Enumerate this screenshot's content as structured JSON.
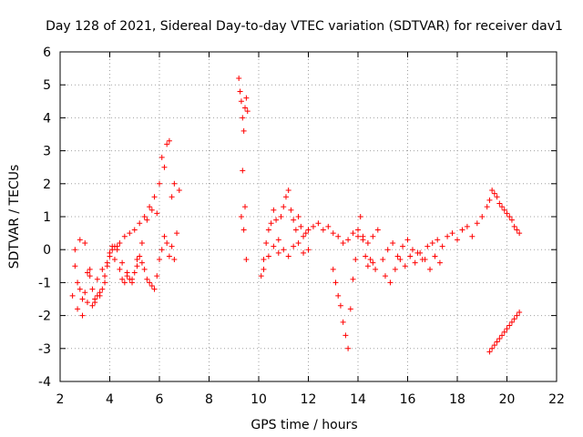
{
  "chart_data": {
    "type": "scatter",
    "title": "Day 128 of 2021, Sidereal Day-to-day VTEC variation (SDTVAR) for receiver dav1",
    "xlabel": "GPS time / hours",
    "ylabel": "SDTVAR / TECUs",
    "xlim": [
      2,
      22
    ],
    "ylim": [
      -4,
      6
    ],
    "x_ticks": [
      "2",
      "4",
      "6",
      "8",
      "10",
      "12",
      "14",
      "16",
      "18",
      "20",
      "22"
    ],
    "y_ticks": [
      "-4",
      "-3",
      "-2",
      "-1",
      "0",
      "1",
      "2",
      "3",
      "4",
      "5",
      "6"
    ],
    "grid": true,
    "marker": "+",
    "marker_color": "#ff0000",
    "series": [
      {
        "name": "SDTVAR",
        "x": [
          2.5,
          2.6,
          2.7,
          2.8,
          2.9,
          3.0,
          3.1,
          3.2,
          3.3,
          3.4,
          3.5,
          3.6,
          3.7,
          3.8,
          3.9,
          4.0,
          4.1,
          4.2,
          4.3,
          4.4,
          4.5,
          4.6,
          4.7,
          4.8,
          4.9,
          5.0,
          5.1,
          5.2,
          5.3,
          5.4,
          5.5,
          5.6,
          5.7,
          5.8,
          5.9,
          6.0,
          6.1,
          6.2,
          6.3,
          6.4,
          6.5,
          6.6,
          6.7,
          6.8,
          2.6,
          2.8,
          3.0,
          3.2,
          3.4,
          3.6,
          3.8,
          4.0,
          4.2,
          4.4,
          4.6,
          4.8,
          5.0,
          5.2,
          5.4,
          5.6,
          5.8,
          6.0,
          6.2,
          6.4,
          6.6,
          2.7,
          2.9,
          3.1,
          3.3,
          3.5,
          3.7,
          3.9,
          4.1,
          4.3,
          4.5,
          4.7,
          4.9,
          5.1,
          5.3,
          5.5,
          5.7,
          5.9,
          6.1,
          6.3,
          6.5,
          9.2,
          9.25,
          9.3,
          9.35,
          9.4,
          9.45,
          9.5,
          9.55,
          9.3,
          9.4,
          9.5,
          9.35,
          9.45,
          10.1,
          10.2,
          10.3,
          10.4,
          10.5,
          10.6,
          10.7,
          10.8,
          10.9,
          11.0,
          11.1,
          11.2,
          11.3,
          11.4,
          11.5,
          11.6,
          11.7,
          11.8,
          11.9,
          12.0,
          12.2,
          12.4,
          12.6,
          12.8,
          13.0,
          13.2,
          13.4,
          13.6,
          13.8,
          14.0,
          14.2,
          14.4,
          14.6,
          14.8,
          10.2,
          10.4,
          10.6,
          10.8,
          11.0,
          11.2,
          11.4,
          11.6,
          11.8,
          12.0,
          13.0,
          13.1,
          13.2,
          13.3,
          13.4,
          13.5,
          13.6,
          13.7,
          13.8,
          13.9,
          14.0,
          14.1,
          14.2,
          14.3,
          14.4,
          14.5,
          14.6,
          14.7,
          15.0,
          15.2,
          15.4,
          15.6,
          15.8,
          16.0,
          16.2,
          16.4,
          16.6,
          16.8,
          17.0,
          17.2,
          17.4,
          17.6,
          17.8,
          18.0,
          18.2,
          18.4,
          18.6,
          18.8,
          19.0,
          19.2,
          15.1,
          15.3,
          15.5,
          15.7,
          15.9,
          16.1,
          16.3,
          16.5,
          16.7,
          16.9,
          17.1,
          17.3,
          19.3,
          19.4,
          19.5,
          19.6,
          19.7,
          19.8,
          19.9,
          20.0,
          20.1,
          20.2,
          20.3,
          20.4,
          20.5,
          19.3,
          19.4,
          19.5,
          19.6,
          19.7,
          19.8,
          19.9,
          20.0,
          20.1,
          20.2,
          20.3,
          20.4,
          20.5
        ],
        "y": [
          -1.4,
          -0.5,
          -1.8,
          -1.2,
          -2.0,
          -1.3,
          -1.6,
          -0.8,
          -1.2,
          -1.5,
          -0.9,
          -1.3,
          -0.6,
          -1.0,
          -0.5,
          -0.1,
          0.1,
          -0.3,
          0.0,
          -0.6,
          -0.9,
          -1.0,
          -0.8,
          -0.9,
          -1.0,
          -0.7,
          -0.5,
          -0.2,
          -0.4,
          -0.6,
          -0.9,
          -1.0,
          -1.1,
          -1.2,
          -0.8,
          -0.3,
          0.0,
          0.4,
          0.2,
          -0.2,
          0.1,
          -0.3,
          0.5,
          1.8,
          0.0,
          0.3,
          0.2,
          -0.6,
          -1.6,
          -1.4,
          -0.8,
          -0.2,
          0.1,
          0.2,
          0.4,
          0.5,
          0.6,
          0.8,
          1.0,
          1.3,
          1.6,
          2.0,
          2.5,
          3.3,
          2.0,
          -1.0,
          -1.5,
          -0.7,
          -1.7,
          -1.4,
          -1.2,
          -0.4,
          0.0,
          0.1,
          -0.4,
          -0.7,
          -0.9,
          -0.3,
          0.2,
          0.9,
          1.2,
          1.1,
          2.8,
          3.2,
          1.6,
          5.2,
          4.8,
          4.5,
          4.0,
          3.6,
          4.3,
          4.6,
          4.2,
          1.0,
          0.6,
          -0.3,
          2.4,
          1.3,
          -0.8,
          -0.3,
          0.2,
          0.6,
          0.8,
          1.2,
          0.9,
          0.3,
          1.0,
          1.3,
          1.6,
          1.8,
          1.2,
          0.9,
          0.6,
          1.0,
          0.7,
          0.4,
          0.5,
          0.6,
          0.7,
          0.8,
          0.6,
          0.7,
          0.5,
          0.4,
          0.2,
          0.3,
          0.5,
          0.4,
          0.3,
          0.2,
          0.4,
          0.6,
          -0.6,
          -0.2,
          0.1,
          -0.1,
          0.0,
          -0.2,
          0.1,
          0.2,
          -0.1,
          0.0,
          -0.6,
          -1.0,
          -1.4,
          -1.7,
          -2.2,
          -2.6,
          -3.0,
          -1.8,
          -0.9,
          -0.3,
          0.6,
          1.0,
          0.4,
          -0.2,
          -0.5,
          -0.3,
          -0.4,
          -0.6,
          -0.3,
          0.0,
          0.2,
          -0.2,
          0.1,
          0.3,
          0.0,
          -0.1,
          -0.3,
          0.1,
          0.2,
          0.3,
          0.1,
          0.4,
          0.5,
          0.3,
          0.6,
          0.7,
          0.4,
          0.8,
          1.0,
          1.3,
          -0.8,
          -1.0,
          -0.6,
          -0.3,
          -0.5,
          -0.2,
          -0.4,
          -0.1,
          -0.3,
          -0.6,
          -0.2,
          -0.4,
          -3.1,
          -3.0,
          -2.9,
          -2.8,
          -2.7,
          -2.6,
          -2.5,
          -2.4,
          -2.3,
          -2.2,
          -2.1,
          -2.0,
          -1.9,
          1.5,
          1.8,
          1.7,
          1.6,
          1.4,
          1.3,
          1.2,
          1.1,
          1.0,
          0.9,
          0.7,
          0.6,
          0.5
        ]
      }
    ]
  }
}
